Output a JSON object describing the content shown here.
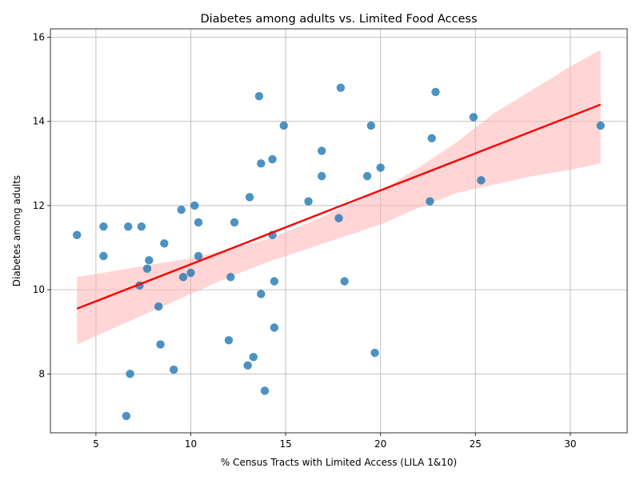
{
  "chart_data": {
    "type": "scatter",
    "title": "Diabetes among adults vs. Limited Food Access",
    "xlabel": "% Census Tracts with Limited Access (LILA 1&10)",
    "ylabel": "Diabetes among adults",
    "xlim": [
      2.6,
      33.0
    ],
    "ylim": [
      6.6,
      16.2
    ],
    "x_ticks": [
      5,
      10,
      15,
      20,
      25,
      30
    ],
    "y_ticks": [
      8,
      10,
      12,
      14,
      16
    ],
    "grid": true,
    "colors": {
      "points": "#1f77b4",
      "fit_line": "#ff0000",
      "confidence_band": "#ffb3b3"
    },
    "regression": {
      "x_start": 4.0,
      "y_start": 9.55,
      "x_end": 31.6,
      "y_end": 14.4
    },
    "confidence_band": {
      "x": [
        4.0,
        6.0,
        8.0,
        10.0,
        12.0,
        14.0,
        16.0,
        18.0,
        20.0,
        22.0,
        24.0,
        26.0,
        28.0,
        30.0,
        31.6
      ],
      "lower": [
        8.7,
        9.1,
        9.5,
        9.9,
        10.3,
        10.65,
        10.95,
        11.25,
        11.55,
        11.95,
        12.3,
        12.5,
        12.7,
        12.85,
        13.0
      ],
      "upper": [
        10.3,
        10.45,
        10.6,
        10.75,
        10.95,
        11.2,
        11.55,
        11.95,
        12.35,
        12.9,
        13.5,
        14.2,
        14.75,
        15.3,
        15.7
      ]
    },
    "points": [
      {
        "x": 17.9,
        "y": 14.8
      },
      {
        "x": 22.9,
        "y": 14.7
      },
      {
        "x": 13.6,
        "y": 14.6
      },
      {
        "x": 24.9,
        "y": 14.1
      },
      {
        "x": 14.9,
        "y": 13.9
      },
      {
        "x": 19.5,
        "y": 13.9
      },
      {
        "x": 31.6,
        "y": 13.9
      },
      {
        "x": 22.7,
        "y": 13.6
      },
      {
        "x": 16.9,
        "y": 13.3
      },
      {
        "x": 14.3,
        "y": 13.1
      },
      {
        "x": 13.7,
        "y": 13.0
      },
      {
        "x": 20.0,
        "y": 12.9
      },
      {
        "x": 16.9,
        "y": 12.7
      },
      {
        "x": 19.3,
        "y": 12.7
      },
      {
        "x": 25.3,
        "y": 12.6
      },
      {
        "x": 13.1,
        "y": 12.2
      },
      {
        "x": 16.2,
        "y": 12.1
      },
      {
        "x": 22.6,
        "y": 12.1
      },
      {
        "x": 10.2,
        "y": 12.0
      },
      {
        "x": 9.5,
        "y": 11.9
      },
      {
        "x": 17.8,
        "y": 11.7
      },
      {
        "x": 10.4,
        "y": 11.6
      },
      {
        "x": 12.3,
        "y": 11.6
      },
      {
        "x": 5.4,
        "y": 11.5
      },
      {
        "x": 6.7,
        "y": 11.5
      },
      {
        "x": 7.4,
        "y": 11.5
      },
      {
        "x": 4.0,
        "y": 11.3
      },
      {
        "x": 14.3,
        "y": 11.3
      },
      {
        "x": 8.6,
        "y": 11.1
      },
      {
        "x": 5.4,
        "y": 10.8
      },
      {
        "x": 10.4,
        "y": 10.8
      },
      {
        "x": 7.8,
        "y": 10.7
      },
      {
        "x": 7.7,
        "y": 10.5
      },
      {
        "x": 10.0,
        "y": 10.4
      },
      {
        "x": 9.6,
        "y": 10.3
      },
      {
        "x": 12.1,
        "y": 10.3
      },
      {
        "x": 14.4,
        "y": 10.2
      },
      {
        "x": 18.1,
        "y": 10.2
      },
      {
        "x": 7.3,
        "y": 10.1
      },
      {
        "x": 13.7,
        "y": 9.9
      },
      {
        "x": 8.3,
        "y": 9.6
      },
      {
        "x": 14.4,
        "y": 9.1
      },
      {
        "x": 12.0,
        "y": 8.8
      },
      {
        "x": 8.4,
        "y": 8.7
      },
      {
        "x": 19.7,
        "y": 8.5
      },
      {
        "x": 13.3,
        "y": 8.4
      },
      {
        "x": 13.0,
        "y": 8.2
      },
      {
        "x": 9.1,
        "y": 8.1
      },
      {
        "x": 6.8,
        "y": 8.0
      },
      {
        "x": 13.9,
        "y": 7.6
      },
      {
        "x": 6.6,
        "y": 7.0
      }
    ]
  }
}
